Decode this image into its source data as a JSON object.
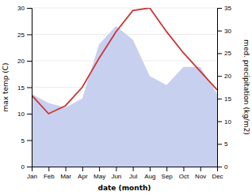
{
  "chart_data": {
    "type": "line",
    "xlabel": "date (month)",
    "ylabel": "max temp (C)",
    "y2label": "med. precipitation (kg/m2)",
    "categories": [
      "Jan",
      "Feb",
      "Mar",
      "Apr",
      "May",
      "Jun",
      "Jul",
      "Aug",
      "Sep",
      "Oct",
      "Nov",
      "Dec"
    ],
    "series": [
      {
        "type": "area",
        "axis": "y2",
        "color": "#c8d0f0",
        "values": [
          16.0,
          14.0,
          13.0,
          15.0,
          27.0,
          31.0,
          28.0,
          20.0,
          18.0,
          22.0,
          22.0,
          16.0
        ]
      },
      {
        "type": "line",
        "color": "#cc3333",
        "values": [
          13.5,
          10.0,
          11.5,
          15.0,
          20.5,
          25.5,
          29.5,
          30.0,
          25.5,
          21.5,
          18.0,
          14.5
        ]
      }
    ],
    "ylim": [
      0,
      30
    ],
    "yticks": [
      0,
      5,
      10,
      15,
      20,
      25,
      30
    ],
    "y2lim": [
      0,
      35
    ],
    "y2ticks": [
      0,
      5,
      10,
      15,
      20,
      25,
      30,
      35
    ],
    "grid": true
  }
}
